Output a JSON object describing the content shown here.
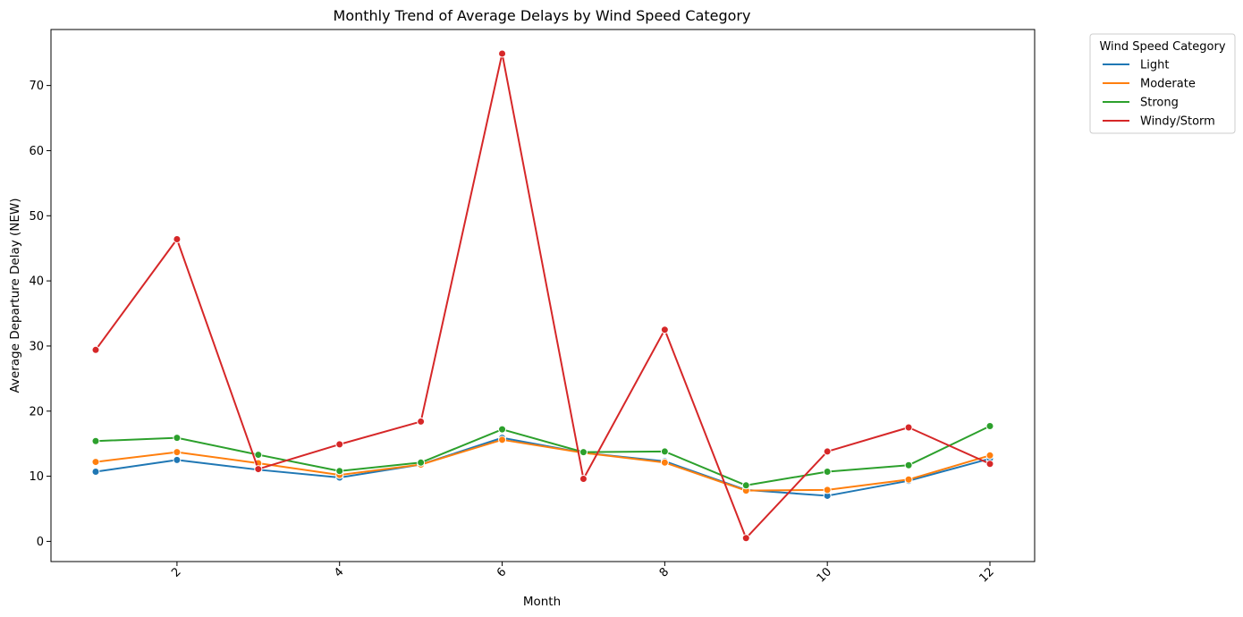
{
  "chart_data": {
    "type": "line",
    "title": "Monthly Trend of Average Delays by Wind Speed Category",
    "xlabel": "Month",
    "ylabel": "Average Departure Delay (NEW)",
    "x": [
      1,
      2,
      3,
      4,
      5,
      6,
      7,
      8,
      9,
      10,
      11,
      12
    ],
    "x_ticks": [
      "2",
      "4",
      "6",
      "8",
      "10",
      "12"
    ],
    "y_ticks": [
      "0",
      "10",
      "20",
      "30",
      "40",
      "50",
      "60",
      "70"
    ],
    "xlim": [
      0.45,
      12.55
    ],
    "ylim": [
      -3.1,
      78.6
    ],
    "grid": false,
    "legend": {
      "title": "Wind Speed Category",
      "placement": "outside-top-right"
    },
    "series": [
      {
        "name": "Light",
        "color": "#1f77b4",
        "values": [
          10.7,
          12.5,
          11.0,
          9.8,
          11.8,
          15.9,
          13.6,
          12.3,
          7.9,
          7.0,
          9.3,
          12.7
        ]
      },
      {
        "name": "Moderate",
        "color": "#ff7f0e",
        "values": [
          12.2,
          13.7,
          12.0,
          10.2,
          11.8,
          15.6,
          13.6,
          12.1,
          7.8,
          7.9,
          9.5,
          13.2
        ]
      },
      {
        "name": "Strong",
        "color": "#2ca02c",
        "values": [
          15.4,
          15.9,
          13.3,
          10.8,
          12.1,
          17.2,
          13.7,
          13.8,
          8.6,
          10.7,
          11.7,
          17.7
        ]
      },
      {
        "name": "Windy/Storm",
        "color": "#d62728",
        "values": [
          29.4,
          46.4,
          11.1,
          14.9,
          18.4,
          74.9,
          9.6,
          32.5,
          0.5,
          13.8,
          17.5,
          11.9
        ]
      }
    ]
  }
}
